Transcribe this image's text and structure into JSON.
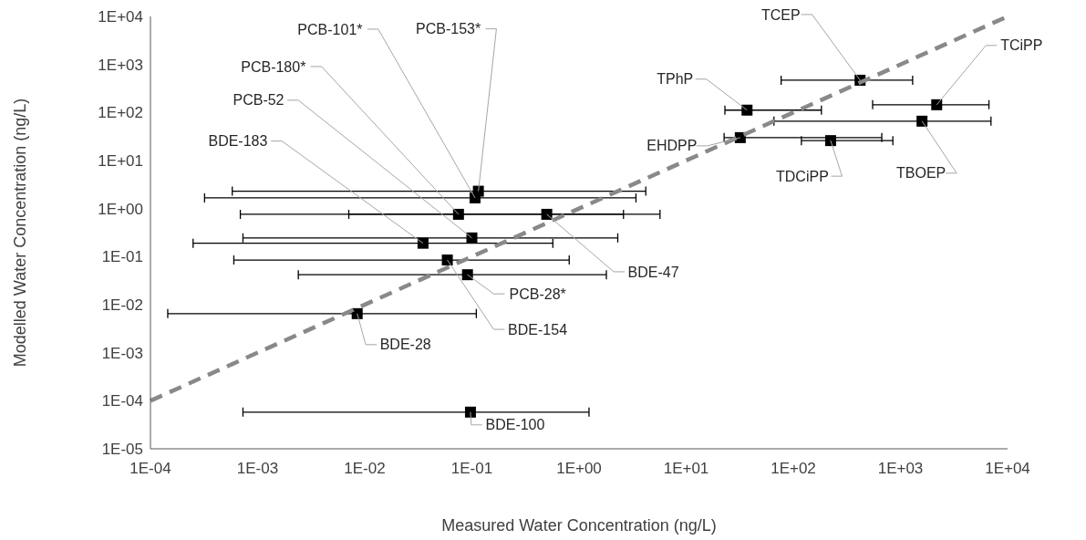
{
  "chart_data": {
    "type": "scatter",
    "xlabel": "Measured Water Concentration (ng/L)",
    "ylabel": "Modelled Water Concentration (ng/L)",
    "log": "xy",
    "grid": false,
    "xlim": [
      0.0001,
      10000
    ],
    "ylim": [
      1e-05,
      10000
    ],
    "xticks": [
      {
        "value": 0.0001,
        "label": "1E-04"
      },
      {
        "value": 0.001,
        "label": "1E-03"
      },
      {
        "value": 0.01,
        "label": "1E-02"
      },
      {
        "value": 0.1,
        "label": "1E-01"
      },
      {
        "value": 1,
        "label": "1E+00"
      },
      {
        "value": 10,
        "label": "1E+01"
      },
      {
        "value": 100,
        "label": "1E+02"
      },
      {
        "value": 1000,
        "label": "1E+03"
      },
      {
        "value": 10000,
        "label": "1E+04"
      }
    ],
    "yticks": [
      {
        "value": 1e-05,
        "label": "1E-05"
      },
      {
        "value": 0.0001,
        "label": "1E-04"
      },
      {
        "value": 0.001,
        "label": "1E-03"
      },
      {
        "value": 0.01,
        "label": "1E-02"
      },
      {
        "value": 0.1,
        "label": "1E-01"
      },
      {
        "value": 1,
        "label": "1E+00"
      },
      {
        "value": 10,
        "label": "1E+01"
      },
      {
        "value": 100,
        "label": "1E+02"
      },
      {
        "value": 1000,
        "label": "1E+03"
      },
      {
        "value": 10000,
        "label": "1E+04"
      }
    ],
    "series": [
      {
        "color": "#000000",
        "marker": "square",
        "x": [
          0.107,
          0.115,
          0.075,
          0.1,
          0.035,
          0.5,
          0.091,
          0.059,
          0.0085,
          0.097,
          420,
          37,
          2180,
          32,
          223,
          1590
        ],
        "values": [
          1.67,
          2.3,
          0.76,
          0.245,
          0.19,
          0.76,
          0.042,
          0.085,
          0.0065,
          5.8e-05,
          470,
          112,
          145,
          30,
          26,
          66
        ],
        "xerrors": [
          [
            0.00032,
            3.4
          ],
          [
            0.00058,
            4.2
          ],
          [
            0.00069,
            5.7
          ],
          [
            0.00073,
            2.3
          ],
          [
            0.00025,
            0.57
          ],
          [
            0.0071,
            2.6
          ],
          [
            0.0024,
            1.8
          ],
          [
            0.0006,
            0.81
          ],
          [
            0.000145,
            0.11
          ],
          [
            0.00073,
            1.24
          ],
          [
            77,
            1300
          ],
          [
            23,
            183
          ],
          [
            550,
            6700
          ],
          [
            22.6,
            670
          ],
          [
            119,
            850
          ],
          [
            66,
            7000
          ]
        ]
      },
      {
        "type": "line",
        "color": "#898989",
        "line_style": "dashed",
        "x": [
          0.0001,
          10000
        ],
        "values": [
          0.0001,
          10000
        ]
      }
    ],
    "annotations": [
      {
        "text": "PCB-101*",
        "x": 0.107,
        "y": 1.67
      },
      {
        "text": "PCB-153*",
        "x": 0.115,
        "y": 2.3
      },
      {
        "text": "PCB-180*",
        "x": 0.075,
        "y": 0.76
      },
      {
        "text": "PCB-52",
        "x": 0.1,
        "y": 0.245
      },
      {
        "text": "BDE-183",
        "x": 0.035,
        "y": 0.19
      },
      {
        "text": "BDE-47",
        "x": 0.5,
        "y": 0.76
      },
      {
        "text": "PCB-28*",
        "x": 0.091,
        "y": 0.042
      },
      {
        "text": "BDE-154",
        "x": 0.059,
        "y": 0.085
      },
      {
        "text": "BDE-28",
        "x": 0.0085,
        "y": 0.0065
      },
      {
        "text": "BDE-100",
        "x": 0.097,
        "y": 5.8e-05
      },
      {
        "text": "TCEP",
        "x": 420,
        "y": 470
      },
      {
        "text": "TPhP",
        "x": 37,
        "y": 112
      },
      {
        "text": "TCiPP",
        "x": 2180,
        "y": 145
      },
      {
        "text": "EHDPP",
        "x": 32,
        "y": 30
      },
      {
        "text": "TDCiPP",
        "x": 223,
        "y": 26
      },
      {
        "text": "TBOEP",
        "x": 1590,
        "y": 66
      }
    ]
  }
}
